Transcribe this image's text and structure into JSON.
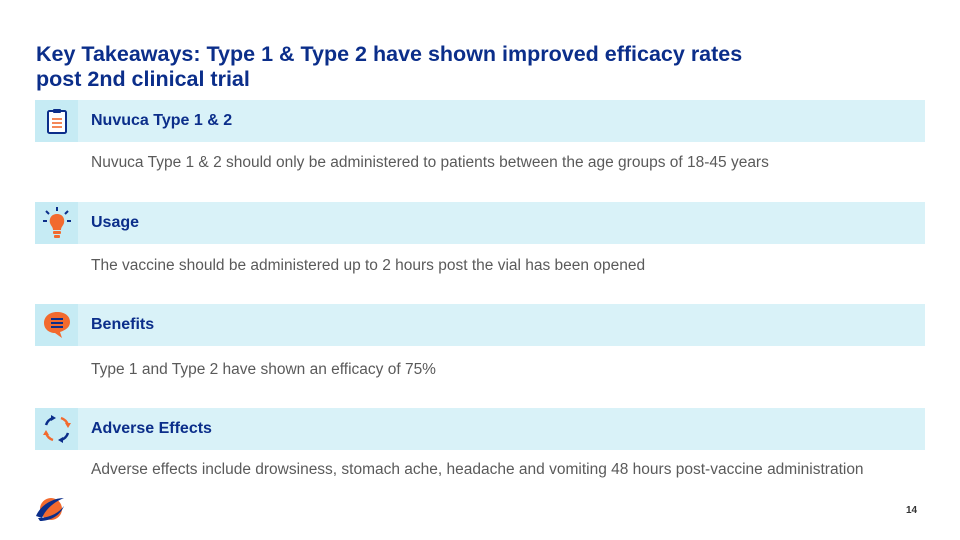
{
  "slide": {
    "title_line1": "Key Takeaways: Type 1 & Type 2 have shown improved efficacy rates",
    "title_line2": "post 2nd clinical trial",
    "page_number": "14"
  },
  "rows": [
    {
      "icon": "clipboard-icon",
      "label": "Nuvuca Type 1 & 2",
      "description": "Nuvuca Type 1 & 2 should only be administered to patients between the age groups of 18-45 years"
    },
    {
      "icon": "lightbulb-icon",
      "label": "Usage",
      "description": "The vaccine should be administered up to 2 hours post the vial has been opened"
    },
    {
      "icon": "chat-bubble-icon",
      "label": "Benefits",
      "description": "Type 1 and Type 2 have shown an efficacy of 75%"
    },
    {
      "icon": "cycle-arrows-icon",
      "label": "Adverse Effects",
      "description": "Adverse effects include drowsiness, stomach ache, headache and vomiting 48 hours post-vaccine administration"
    }
  ],
  "colors": {
    "title": "#0b2e8a",
    "row_bar": "#d9f2f8",
    "icon_bg": "#c6ebf4",
    "accent_orange": "#f26a2e",
    "accent_navy": "#0b2e8a",
    "body_text": "#5a5a5a"
  },
  "logo": "company-logo"
}
